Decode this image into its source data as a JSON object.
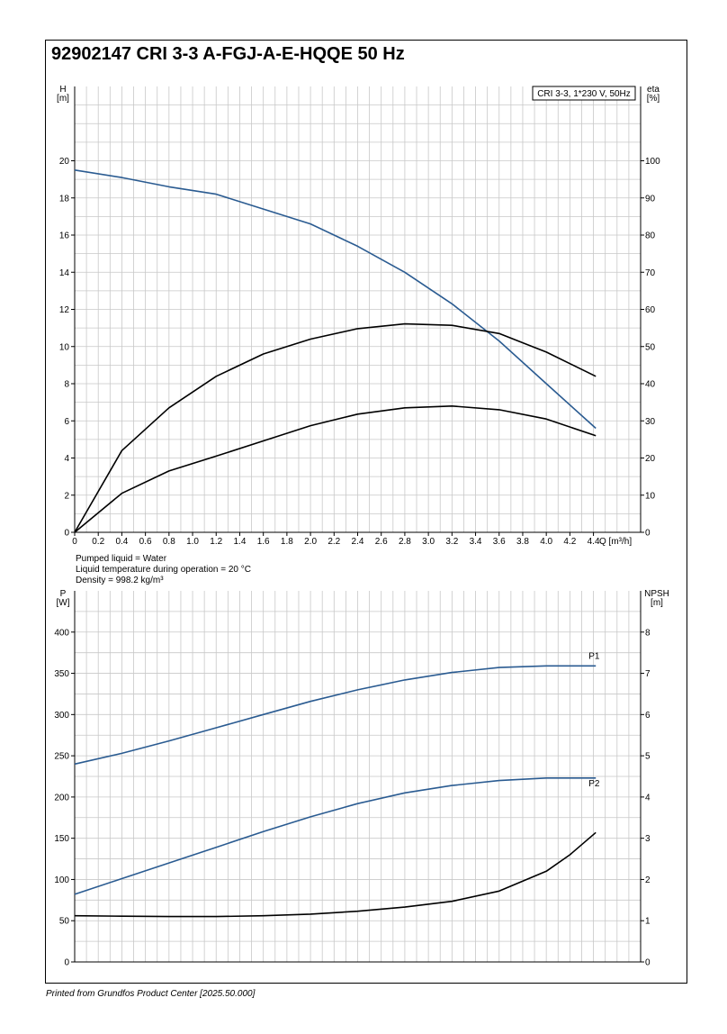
{
  "title": "92902147 CRI 3-3 A-FGJ-A-E-HQQE 50 Hz",
  "footer": "Printed from Grundfos Product Center [2025.50.000]",
  "colors": {
    "blue": "#2a5b91",
    "black": "#000000",
    "grid": "#c8c8c8"
  },
  "chart_data": [
    {
      "type": "line",
      "legend_box": "CRI 3-3, 1*230 V, 50Hz",
      "xlabel": "Q [m³/h]",
      "ylabel_left": "H",
      "ylabel_left_unit": "[m]",
      "ylabel_right": "eta",
      "ylabel_right_unit": "[%]",
      "xlim": [
        0,
        4.8
      ],
      "ylim_left": [
        0,
        24
      ],
      "ylim_right": [
        0,
        120
      ],
      "x_ticks": [
        "0",
        "0.2",
        "0.4",
        "0.6",
        "0.8",
        "1.0",
        "1.2",
        "1.4",
        "1.6",
        "1.8",
        "2.0",
        "2.2",
        "2.4",
        "2.6",
        "2.8",
        "3.0",
        "3.2",
        "3.4",
        "3.6",
        "3.8",
        "4.0",
        "4.2",
        "4.4"
      ],
      "y_ticks_left": [
        "0",
        "2",
        "4",
        "6",
        "8",
        "10",
        "12",
        "14",
        "16",
        "18",
        "20"
      ],
      "y_ticks_right": [
        "0",
        "10",
        "20",
        "30",
        "40",
        "50",
        "60",
        "70",
        "80",
        "90",
        "100"
      ],
      "grid": true,
      "duty_range_start_q": 1.2,
      "series": [
        {
          "name": "H",
          "axis": "left",
          "color": "#2a5b91",
          "x": [
            0,
            0.4,
            0.8,
            1.2,
            1.6,
            2.0,
            2.4,
            2.8,
            3.2,
            3.6,
            4.0,
            4.42
          ],
          "y": [
            19.5,
            19.1,
            18.6,
            18.2,
            17.4,
            16.6,
            15.4,
            14.0,
            12.3,
            10.3,
            8.0,
            5.6
          ]
        },
        {
          "name": "eta",
          "axis": "right",
          "color": "#000000",
          "x": [
            0,
            0.4,
            0.8,
            1.2,
            1.6,
            2.0,
            2.4,
            2.8,
            3.2,
            3.6,
            4.0,
            4.42
          ],
          "y": [
            0,
            22,
            33.5,
            42,
            48,
            52,
            54.8,
            56.1,
            55.7,
            53.5,
            48.5,
            42
          ]
        },
        {
          "name": "Eta pump",
          "axis": "right",
          "color": "#000000",
          "x": [
            0,
            0.4,
            0.8,
            1.2,
            1.6,
            2.0,
            2.4,
            2.8,
            3.2,
            3.6,
            4.0,
            4.42
          ],
          "y": [
            0,
            10.5,
            16.5,
            20.5,
            24.6,
            28.7,
            31.8,
            33.5,
            34.0,
            33.0,
            30.5,
            26.0
          ]
        }
      ]
    },
    {
      "type": "line",
      "xlabel": "",
      "ylabel_left": "P",
      "ylabel_left_unit": "[W]",
      "ylabel_right": "NPSH",
      "ylabel_right_unit": "[m]",
      "xlim": [
        0,
        4.8
      ],
      "ylim_left": [
        0,
        450
      ],
      "ylim_right": [
        0,
        9
      ],
      "y_ticks_left": [
        "0",
        "50",
        "100",
        "150",
        "200",
        "250",
        "300",
        "350",
        "400"
      ],
      "y_ticks_right": [
        "0",
        "1",
        "2",
        "3",
        "4",
        "5",
        "6",
        "7",
        "8"
      ],
      "grid": true,
      "series": [
        {
          "name": "P1",
          "axis": "left",
          "color": "#2a5b91",
          "x": [
            0,
            0.4,
            0.8,
            1.2,
            1.6,
            2.0,
            2.4,
            2.8,
            3.2,
            3.6,
            4.0,
            4.42
          ],
          "y": [
            240,
            253,
            268,
            284,
            300,
            316,
            330,
            342,
            351,
            357,
            359,
            359
          ]
        },
        {
          "name": "P2",
          "axis": "left",
          "color": "#2a5b91",
          "x": [
            0,
            0.4,
            0.8,
            1.2,
            1.6,
            2.0,
            2.4,
            2.8,
            3.2,
            3.6,
            4.0,
            4.42
          ],
          "y": [
            82,
            101,
            120,
            139,
            158,
            176,
            192,
            205,
            214,
            220,
            223,
            223
          ]
        },
        {
          "name": "NPSH",
          "axis": "right",
          "color": "#000000",
          "x": [
            0,
            0.4,
            0.8,
            1.2,
            1.6,
            2.0,
            2.4,
            2.8,
            3.2,
            3.6,
            4.0,
            4.2,
            4.42
          ],
          "y": [
            1.12,
            1.11,
            1.1,
            1.1,
            1.12,
            1.16,
            1.23,
            1.33,
            1.47,
            1.72,
            2.2,
            2.6,
            3.14
          ]
        }
      ]
    }
  ],
  "notes": [
    "Pumped liquid = Water",
    "Liquid temperature during operation = 20 °C",
    "Density = 998.2 kg/m³"
  ]
}
